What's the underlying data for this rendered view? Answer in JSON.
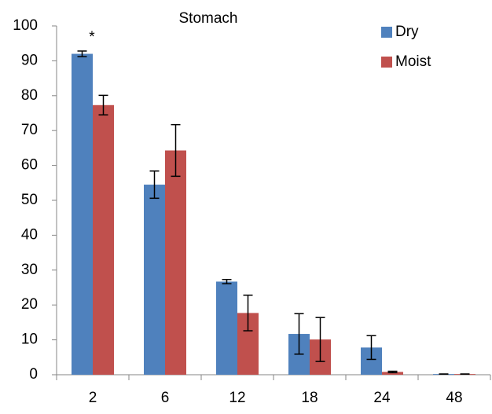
{
  "chart_data": {
    "type": "bar",
    "title": "Stomach",
    "categories": [
      "2",
      "6",
      "12",
      "18",
      "24",
      "48"
    ],
    "series": [
      {
        "name": "Dry",
        "color": "#4f81bd",
        "values": [
          92,
          54.5,
          26.7,
          11.7,
          7.8,
          0.2
        ],
        "errors": [
          0.8,
          3.9,
          0.6,
          5.8,
          3.4,
          0
        ]
      },
      {
        "name": "Moist",
        "color": "#c0504d",
        "values": [
          77.3,
          64.3,
          17.7,
          10.1,
          0.8,
          0.2
        ],
        "errors": [
          2.8,
          7.4,
          5.1,
          6.3,
          0.2,
          0
        ]
      }
    ],
    "annotations": [
      "*"
    ],
    "ylim": [
      0,
      100
    ],
    "yticks": [
      0,
      10,
      20,
      30,
      40,
      50,
      60,
      70,
      80,
      90,
      100
    ],
    "legend": "top-right"
  }
}
